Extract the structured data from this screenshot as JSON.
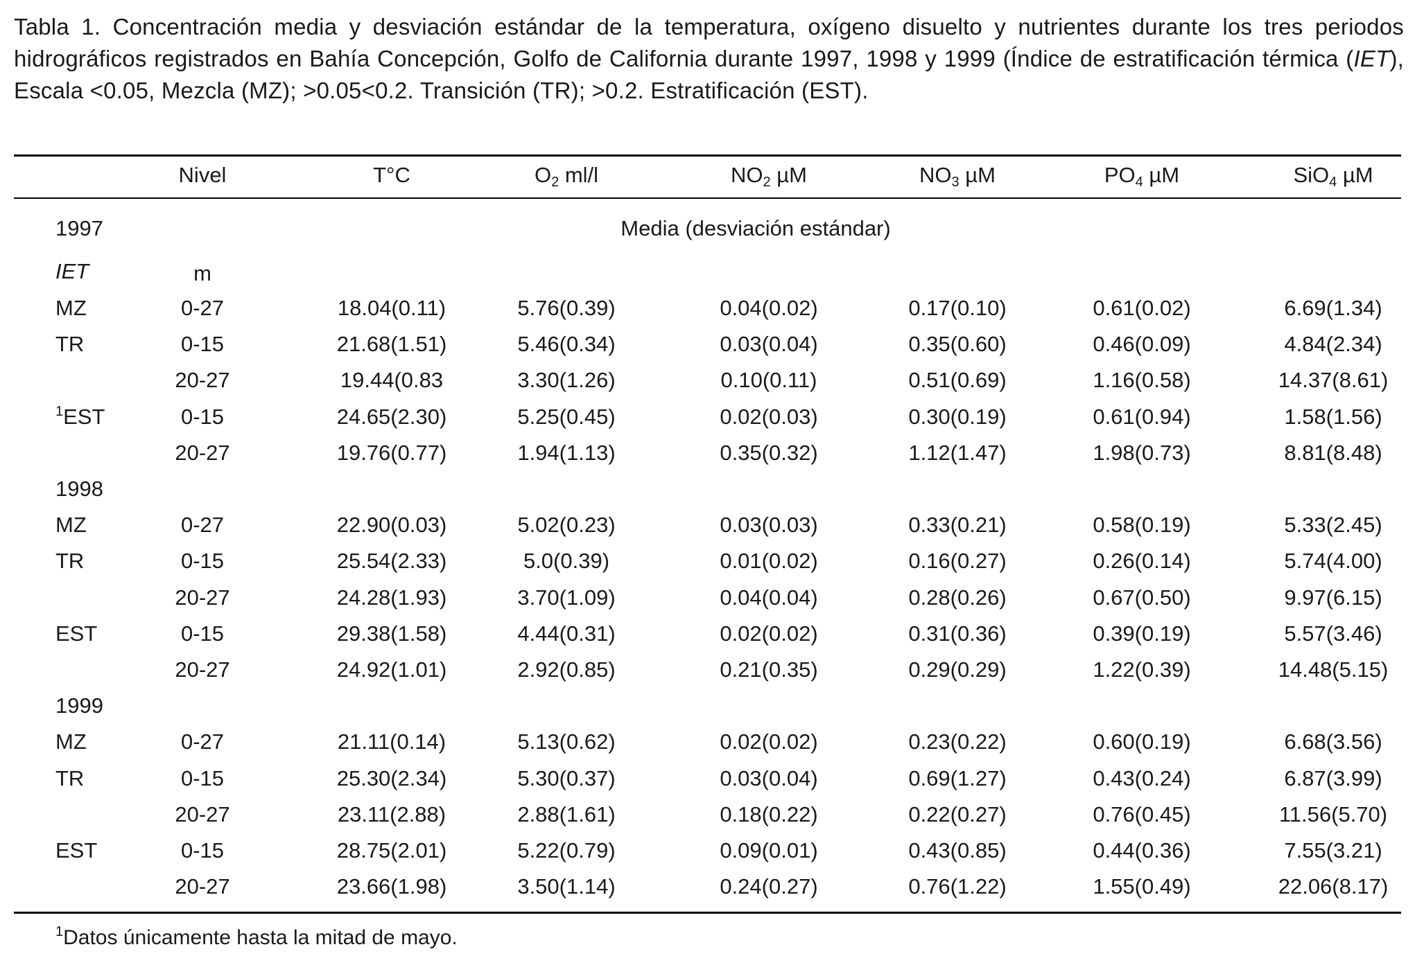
{
  "caption": {
    "part1": "Tabla 1. Concentración media y desviación estándar de la temperatura, oxígeno disuelto y nutrientes durante los tres periodos hidrográficos registrados en Bahía Concepción, Golfo de California durante 1997, 1998 y 1999 (Índice de estratificación térmica (",
    "iet": "IET",
    "part2": "), Escala <0.05, Mezcla (MZ); >0.05<0.2. Transición (TR); >0.2. Estratificación (EST)."
  },
  "headers": {
    "nivel": "Nivel",
    "temp": "T°C",
    "o2_base": "O",
    "o2_sub": "2",
    "o2_unit": " ml/l",
    "no2_base": "NO",
    "no2_sub": "2",
    "no2_unit": " µM",
    "no3_base": "NO",
    "no3_sub": "3",
    "no3_unit": " µM",
    "po4_base": "PO",
    "po4_sub": "4",
    "po4_unit": " µM",
    "sio4_base": "SiO",
    "sio4_sub": "4",
    "sio4_unit": " µM"
  },
  "subheader": {
    "year": "1997",
    "span_label": "Media (desviación estándar)",
    "iet_label": "IET",
    "unit_m": "m"
  },
  "rows": [
    {
      "label": "MZ",
      "sup": "",
      "nivel": "0-27",
      "t": "18.04(0.11)",
      "o2": "5.76(0.39)",
      "no2": "0.04(0.02)",
      "no3": "0.17(0.10)",
      "po4": "0.61(0.02)",
      "sio4": "6.69(1.34)"
    },
    {
      "label": "TR",
      "sup": "",
      "nivel": "0-15",
      "t": "21.68(1.51)",
      "o2": "5.46(0.34)",
      "no2": "0.03(0.04)",
      "no3": "0.35(0.60)",
      "po4": "0.46(0.09)",
      "sio4": "4.84(2.34)"
    },
    {
      "label": "",
      "sup": "",
      "nivel": "20-27",
      "t": "19.44(0.83",
      "o2": "3.30(1.26)",
      "no2": "0.10(0.11)",
      "no3": "0.51(0.69)",
      "po4": "1.16(0.58)",
      "sio4": "14.37(8.61)"
    },
    {
      "label": "EST",
      "sup": "1",
      "nivel": "0-15",
      "t": "24.65(2.30)",
      "o2": "5.25(0.45)",
      "no2": "0.02(0.03)",
      "no3": "0.30(0.19)",
      "po4": "0.61(0.94)",
      "sio4": "1.58(1.56)"
    },
    {
      "label": "",
      "sup": "",
      "nivel": "20-27",
      "t": "19.76(0.77)",
      "o2": "1.94(1.13)",
      "no2": "0.35(0.32)",
      "no3": "1.12(1.47)",
      "po4": "1.98(0.73)",
      "sio4": "8.81(8.48)"
    },
    {
      "year": "1998"
    },
    {
      "label": "MZ",
      "sup": "",
      "nivel": "0-27",
      "t": "22.90(0.03)",
      "o2": "5.02(0.23)",
      "no2": "0.03(0.03)",
      "no3": "0.33(0.21)",
      "po4": "0.58(0.19)",
      "sio4": "5.33(2.45)"
    },
    {
      "label": "TR",
      "sup": "",
      "nivel": "0-15",
      "t": "25.54(2.33)",
      "o2": "5.0(0.39)",
      "no2": "0.01(0.02)",
      "no3": "0.16(0.27)",
      "po4": "0.26(0.14)",
      "sio4": "5.74(4.00)"
    },
    {
      "label": "",
      "sup": "",
      "nivel": "20-27",
      "t": "24.28(1.93)",
      "o2": "3.70(1.09)",
      "no2": "0.04(0.04)",
      "no3": "0.28(0.26)",
      "po4": "0.67(0.50)",
      "sio4": "9.97(6.15)"
    },
    {
      "label": "EST",
      "sup": "",
      "nivel": "0-15",
      "t": "29.38(1.58)",
      "o2": "4.44(0.31)",
      "no2": "0.02(0.02)",
      "no3": "0.31(0.36)",
      "po4": "0.39(0.19)",
      "sio4": "5.57(3.46)"
    },
    {
      "label": "",
      "sup": "",
      "nivel": "20-27",
      "t": "24.92(1.01)",
      "o2": "2.92(0.85)",
      "no2": "0.21(0.35)",
      "no3": "0.29(0.29)",
      "po4": "1.22(0.39)",
      "sio4": "14.48(5.15)"
    },
    {
      "year": "1999"
    },
    {
      "label": "MZ",
      "sup": "",
      "nivel": "0-27",
      "t": "21.11(0.14)",
      "o2": "5.13(0.62)",
      "no2": "0.02(0.02)",
      "no3": "0.23(0.22)",
      "po4": "0.60(0.19)",
      "sio4": "6.68(3.56)"
    },
    {
      "label": "TR",
      "sup": "",
      "nivel": "0-15",
      "t": "25.30(2.34)",
      "o2": "5.30(0.37)",
      "no2": "0.03(0.04)",
      "no3": "0.69(1.27)",
      "po4": "0.43(0.24)",
      "sio4": "6.87(3.99)"
    },
    {
      "label": "",
      "sup": "",
      "nivel": "20-27",
      "t": "23.11(2.88)",
      "o2": "2.88(1.61)",
      "no2": "0.18(0.22)",
      "no3": "0.22(0.27)",
      "po4": "0.76(0.45)",
      "sio4": "11.56(5.70)"
    },
    {
      "label": "EST",
      "sup": "",
      "nivel": "0-15",
      "t": "28.75(2.01)",
      "o2": "5.22(0.79)",
      "no2": "0.09(0.01)",
      "no3": "0.43(0.85)",
      "po4": "0.44(0.36)",
      "sio4": "7.55(3.21)"
    },
    {
      "label": "",
      "sup": "",
      "nivel": "20-27",
      "t": "23.66(1.98)",
      "o2": "3.50(1.14)",
      "no2": "0.24(0.27)",
      "no3": "0.76(1.22)",
      "po4": "1.55(0.49)",
      "sio4": "22.06(8.17)"
    }
  ],
  "footnote": {
    "sup": "1",
    "text": "Datos únicamente hasta la mitad de mayo."
  }
}
